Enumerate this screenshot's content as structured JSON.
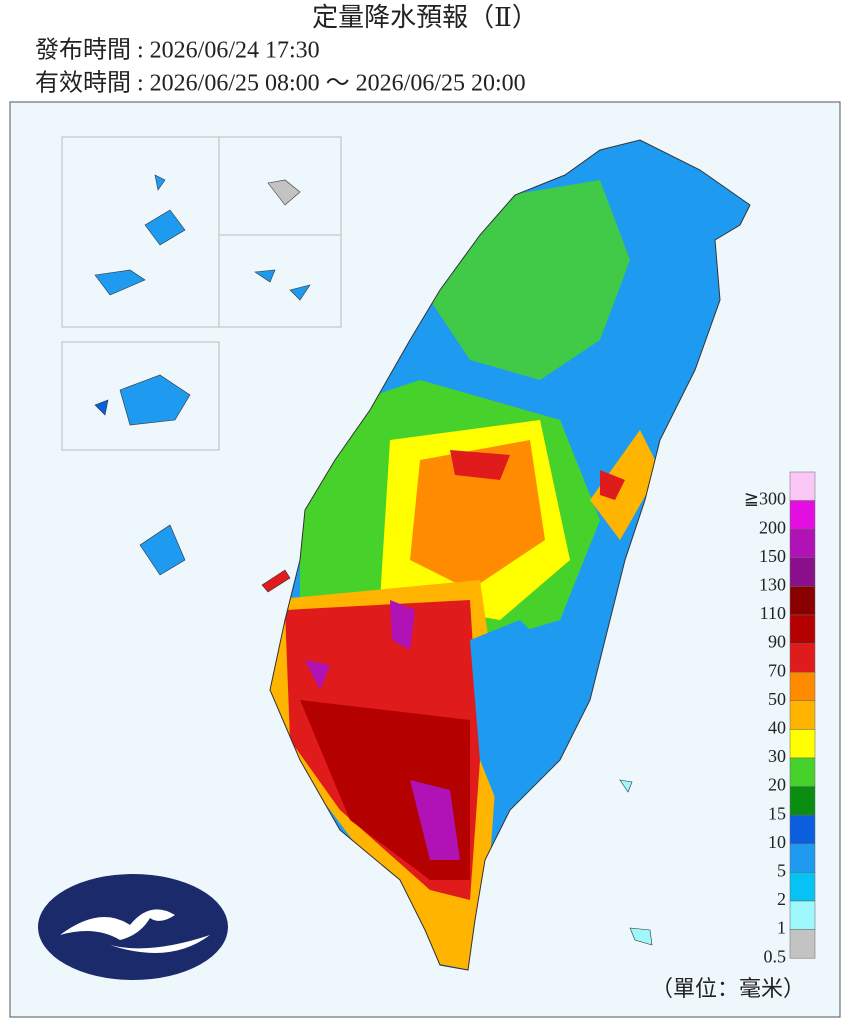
{
  "header": {
    "title": "定量降水預報（Ⅱ）",
    "issued": "發布時間 : 2026/06/24 17:30",
    "valid": "有效時間 : 2026/06/25 08:00 ～ 2026/06/25 20:00"
  },
  "legend": {
    "labels": [
      "≧300",
      "200",
      "150",
      "130",
      "110",
      "90",
      "70",
      "50",
      "40",
      "30",
      "20",
      "15",
      "10",
      "5",
      "2",
      "1",
      "0.5"
    ],
    "colors": [
      "#fbc8f5",
      "#e40ee0",
      "#b012b5",
      "#8a0f8a",
      "#8a0000",
      "#b50000",
      "#e01b1b",
      "#ff8c00",
      "#ffb400",
      "#ffff00",
      "#46d22a",
      "#0b8d12",
      "#0b5fde",
      "#1e9bf0",
      "#06c3f3",
      "#9ef7fb",
      "#c3c3c3"
    ],
    "unit": "（單位：毫米）"
  }
}
